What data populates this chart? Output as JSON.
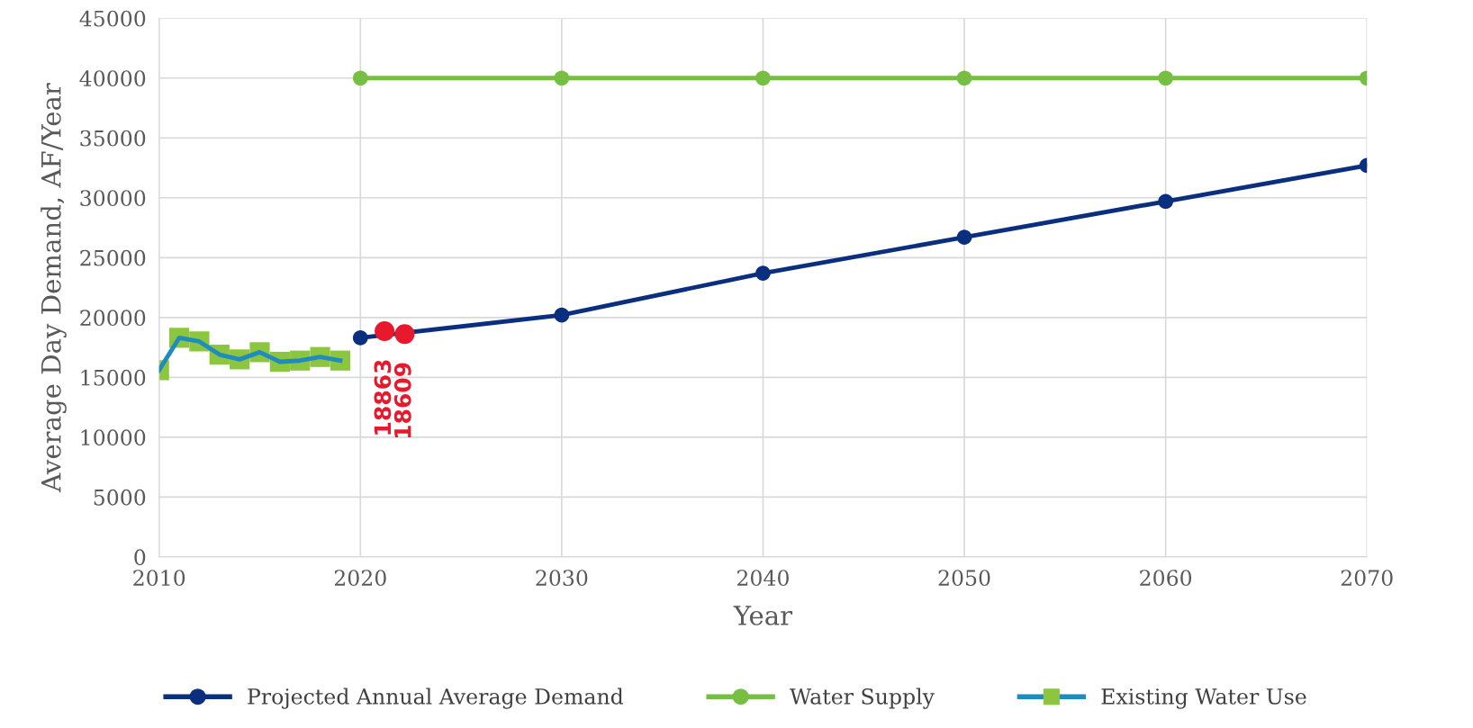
{
  "chart_data": {
    "type": "line",
    "xlabel": "Year",
    "ylabel": "Average Day Demand, AF/Year",
    "xlim": [
      2010,
      2070
    ],
    "xticks": [
      2010,
      2020,
      2030,
      2040,
      2050,
      2060,
      2070
    ],
    "ylim": [
      0,
      45000
    ],
    "yticks": [
      0,
      5000,
      10000,
      15000,
      20000,
      25000,
      30000,
      35000,
      40000,
      45000
    ],
    "grid": true,
    "legend": "bottom",
    "line_style": "solid",
    "series": [
      {
        "name": "Projected Annual Average Demand",
        "color": "#0b2f7f",
        "marker": "circle",
        "x": [
          2020,
          2030,
          2040,
          2050,
          2060,
          2070
        ],
        "values": [
          18300,
          20200,
          23700,
          26700,
          29700,
          32700
        ]
      },
      {
        "name": "Water Supply",
        "color": "#77bf43",
        "marker": "circle",
        "x": [
          2020,
          2030,
          2040,
          2050,
          2060,
          2070
        ],
        "values": [
          40000,
          40000,
          40000,
          40000,
          40000,
          40000
        ]
      },
      {
        "name": "Existing Water Use",
        "color": "#1f8bbf",
        "marker": "square",
        "colors": [
          "#8cc63f",
          "#8cc63f",
          "#8cc63f",
          "#8cc63f",
          "#8cc63f",
          "#8cc63f",
          "#8cc63f",
          "#8cc63f",
          "#8cc63f",
          "#8cc63f"
        ],
        "x": [
          2010,
          2011,
          2012,
          2013,
          2014,
          2015,
          2016,
          2017,
          2018,
          2019
        ],
        "values": [
          15600,
          18300,
          18000,
          16900,
          16500,
          17100,
          16300,
          16400,
          16700,
          16400
        ]
      },
      {
        "type": "scatter",
        "color": "#e8192c",
        "marker": "circle",
        "x": [
          2021.2,
          2022.2
        ],
        "values": [
          18863,
          18609
        ],
        "value_labels": [
          "18863",
          "18609"
        ]
      }
    ]
  }
}
